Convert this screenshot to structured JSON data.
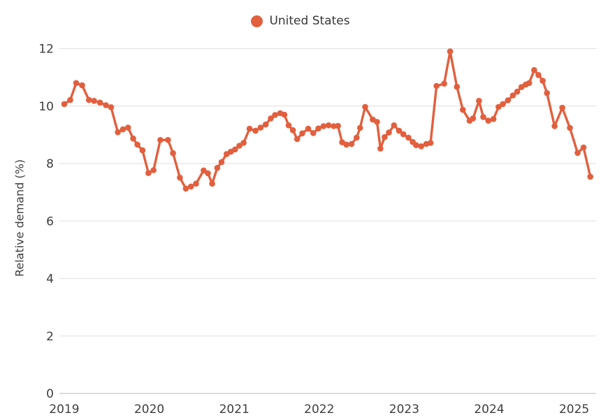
{
  "legend": {
    "items": [
      {
        "label": "United States",
        "color": "#e25f3e"
      }
    ]
  },
  "y_axis": {
    "title": "Relative demand (%)"
  },
  "chart_data": {
    "type": "line",
    "title": "",
    "xlabel": "",
    "ylabel": "Relative demand (%)",
    "ylim": [
      0,
      12
    ],
    "xlim": [
      2018.95,
      2025.35
    ],
    "y_ticks": [
      0,
      2,
      4,
      6,
      8,
      10,
      12
    ],
    "x_ticks": [
      2019,
      2020,
      2021,
      2022,
      2023,
      2024,
      2025
    ],
    "grid": "horizontal",
    "grid_color": "#e4e4e4",
    "axis_line_color": "#cfcfcf",
    "legend_position": "top-center",
    "series": [
      {
        "name": "United States",
        "color": "#e25f3e",
        "marker": "circle",
        "x": [
          2019.0,
          2019.07,
          2019.14,
          2019.21,
          2019.29,
          2019.35,
          2019.42,
          2019.49,
          2019.55,
          2019.63,
          2019.69,
          2019.75,
          2019.81,
          2019.86,
          2019.92,
          2019.99,
          2020.05,
          2020.13,
          2020.22,
          2020.28,
          2020.36,
          2020.43,
          2020.49,
          2020.55,
          2020.64,
          2020.69,
          2020.74,
          2020.8,
          2020.85,
          2020.91,
          2020.96,
          2021.01,
          2021.06,
          2021.11,
          2021.18,
          2021.25,
          2021.31,
          2021.37,
          2021.43,
          2021.48,
          2021.54,
          2021.59,
          2021.64,
          2021.69,
          2021.74,
          2021.8,
          2021.87,
          2021.93,
          2021.99,
          2022.05,
          2022.11,
          2022.17,
          2022.22,
          2022.27,
          2022.32,
          2022.38,
          2022.44,
          2022.48,
          2022.54,
          2022.63,
          2022.68,
          2022.72,
          2022.77,
          2022.82,
          2022.88,
          2022.94,
          2022.99,
          2023.05,
          2023.1,
          2023.14,
          2023.2,
          2023.26,
          2023.31,
          2023.38,
          2023.47,
          2023.54,
          2023.62,
          2023.69,
          2023.77,
          2023.81,
          2023.88,
          2023.93,
          2023.99,
          2024.05,
          2024.11,
          2024.16,
          2024.22,
          2024.28,
          2024.33,
          2024.38,
          2024.43,
          2024.47,
          2024.53,
          2024.58,
          2024.63,
          2024.68,
          2024.77,
          2024.86,
          2024.95,
          2025.04,
          2025.11,
          2025.19
        ],
        "y": [
          10.07,
          10.21,
          10.8,
          10.72,
          10.21,
          10.18,
          10.12,
          10.03,
          9.96,
          9.09,
          9.19,
          9.25,
          8.87,
          8.66,
          8.46,
          7.67,
          7.77,
          8.82,
          8.82,
          8.36,
          7.51,
          7.13,
          7.2,
          7.3,
          7.76,
          7.66,
          7.3,
          7.85,
          8.05,
          8.33,
          8.41,
          8.49,
          8.62,
          8.72,
          9.21,
          9.14,
          9.25,
          9.36,
          9.57,
          9.69,
          9.75,
          9.7,
          9.33,
          9.16,
          8.85,
          9.05,
          9.21,
          9.06,
          9.22,
          9.3,
          9.33,
          9.3,
          9.31,
          8.74,
          8.66,
          8.68,
          8.9,
          9.24,
          9.97,
          9.53,
          9.45,
          8.52,
          8.92,
          9.08,
          9.33,
          9.14,
          9.02,
          8.9,
          8.75,
          8.64,
          8.6,
          8.68,
          8.72,
          10.7,
          10.78,
          11.9,
          10.67,
          9.87,
          9.49,
          9.57,
          10.18,
          9.62,
          9.49,
          9.55,
          9.97,
          10.07,
          10.2,
          10.37,
          10.5,
          10.66,
          10.75,
          10.8,
          11.25,
          11.08,
          10.88,
          10.45,
          9.3,
          9.94,
          9.24,
          8.37,
          8.56,
          7.54
        ]
      }
    ]
  }
}
